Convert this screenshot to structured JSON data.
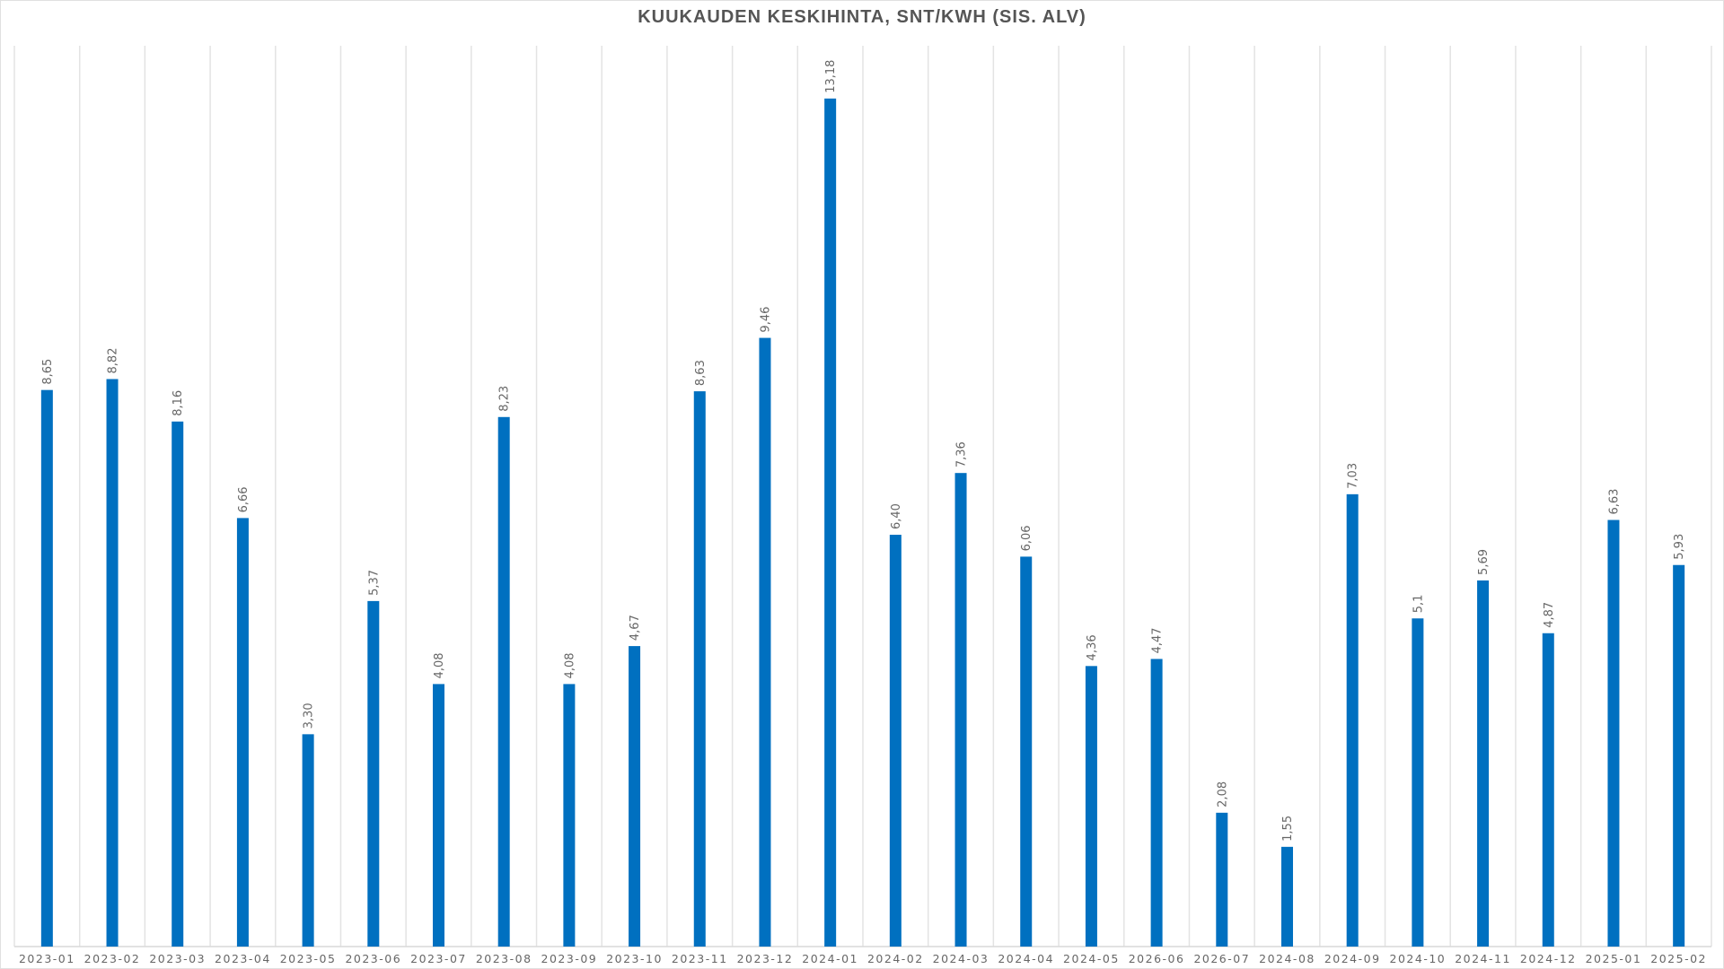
{
  "chart_data": {
    "type": "bar",
    "title": "KUUKAUDEN KESKIHINTA, SNT/KWH (SIS. ALV)",
    "xlabel": "",
    "ylabel": "",
    "ylim": [
      0,
      14
    ],
    "grid": "vertical",
    "legend": "none",
    "bar_color": "#0070C0",
    "categories": [
      "2023-01",
      "2023-02",
      "2023-03",
      "2023-04",
      "2023-05",
      "2023-06",
      "2023-07",
      "2023-08",
      "2023-09",
      "2023-10",
      "2023-11",
      "2023-12",
      "2024-01",
      "2024-02",
      "2024-03",
      "2024-04",
      "2024-05",
      "2026-06",
      "2026-07",
      "2024-08",
      "2024-09",
      "2024-10",
      "2024-11",
      "2024-12",
      "2025-01",
      "2025-02"
    ],
    "values": [
      8.65,
      8.82,
      8.16,
      6.66,
      3.3,
      5.37,
      4.08,
      8.23,
      4.08,
      4.67,
      8.63,
      9.46,
      13.18,
      6.4,
      7.36,
      6.06,
      4.36,
      4.47,
      2.08,
      1.55,
      7.03,
      5.1,
      5.69,
      4.87,
      6.63,
      5.93
    ],
    "data_labels": [
      "8,65",
      "8,82",
      "8,16",
      "6,66",
      "3,30",
      "5,37",
      "4,08",
      "8,23",
      "4,08",
      "4,67",
      "8,63",
      "9,46",
      "13,18",
      "6,40",
      "7,36",
      "6,06",
      "4,36",
      "4,47",
      "2,08",
      "1,55",
      "7,03",
      "5,1",
      "5,69",
      "4,87",
      "6,63",
      "5,93"
    ]
  }
}
